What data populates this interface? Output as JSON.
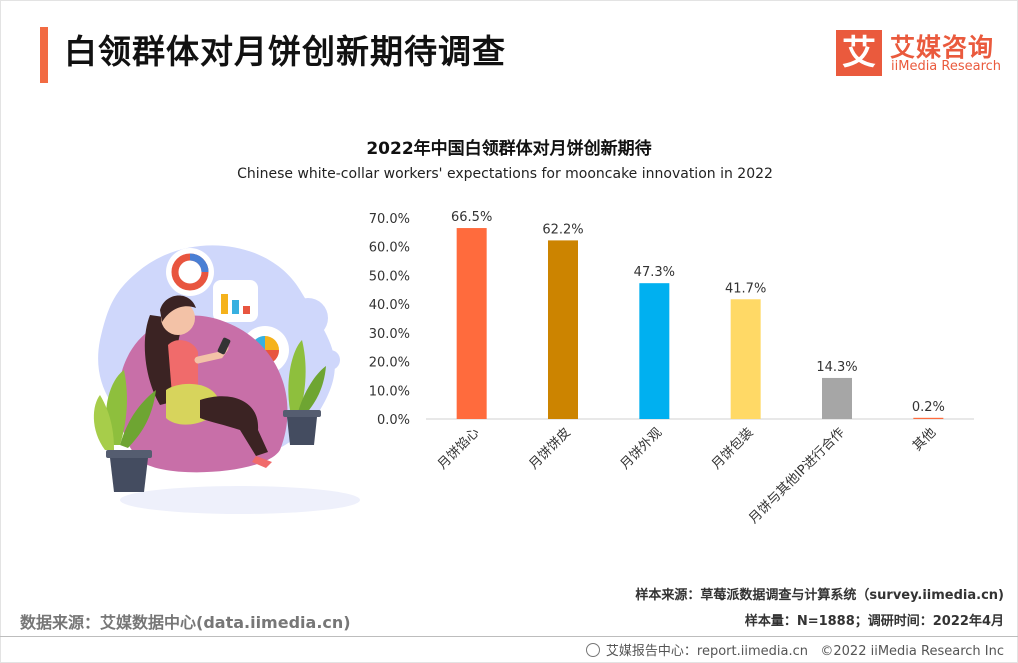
{
  "header": {
    "title": "白领群体对月饼创新期待调查",
    "logo_mark": "艾",
    "logo_cn": "艾媒咨询",
    "logo_en": "iiMedia Research"
  },
  "chart_data": {
    "type": "bar",
    "title": "2022年中国白领群体对月饼创新期待",
    "subtitle": "Chinese white-collar workers' expectations for mooncake innovation in 2022",
    "categories": [
      "月饼馅心",
      "月饼饼皮",
      "月饼外观",
      "月饼包装",
      "月饼与其他IP进行合作",
      "其他"
    ],
    "values": [
      66.5,
      62.2,
      47.3,
      41.7,
      14.3,
      0.2
    ],
    "value_labels": [
      "66.5%",
      "62.2%",
      "47.3%",
      "41.7%",
      "14.3%",
      "0.2%"
    ],
    "colors": [
      "#ff6b3d",
      "#cc8400",
      "#00b0f0",
      "#ffd966",
      "#a6a6a6",
      "#ff6b3d"
    ],
    "yticks": [
      "70.0%",
      "60.0%",
      "50.0%",
      "40.0%",
      "30.0%",
      "20.0%",
      "10.0%",
      "0.0%"
    ],
    "ylim": [
      0,
      70
    ],
    "xlabel": "",
    "ylabel": ""
  },
  "footer": {
    "data_source": "数据来源：艾媒数据中心(data.iimedia.cn)",
    "sample_source": "样本来源：草莓派数据调查与计算系统（survey.iimedia.cn)",
    "sample_size": "样本量：N=1888；调研时间：2022年4月",
    "report_center": "艾媒报告中心：report.iimedia.cn",
    "copyright": "©2022  iiMedia Research  Inc"
  }
}
